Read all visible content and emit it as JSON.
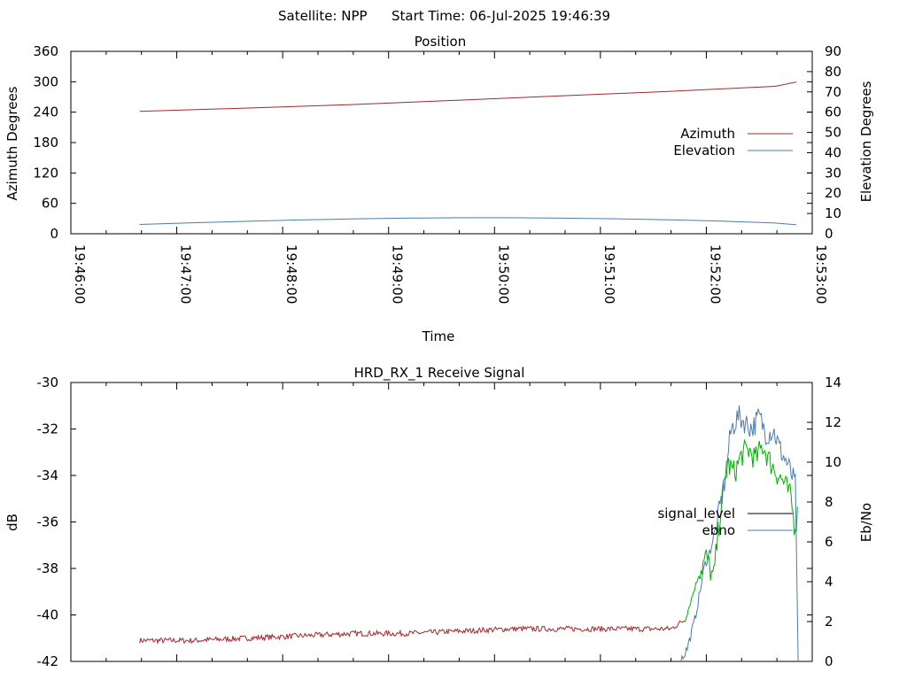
{
  "header": {
    "satellite_label": "Satellite: NPP",
    "start_time_label": "Start Time: 06-Jul-2025 19:46:39"
  },
  "colors": {
    "azimuth": "#a0282d",
    "elevation": "#4a7cb0",
    "signal_low": "#a0282d",
    "signal_high": "#00b000",
    "ebno": "#4a7cb0",
    "legend_signal_level": "#000000",
    "axis": "#000000"
  },
  "chart_data": [
    {
      "type": "line",
      "title": "Position",
      "xlabel": "Time",
      "ylabel": "Azimuth Degrees",
      "y2label": "Elevation Degrees",
      "xticks": [
        "19:46:00",
        "19:47:00",
        "19:48:00",
        "19:49:00",
        "19:50:00",
        "19:51:00",
        "19:52:00",
        "19:53:00"
      ],
      "xlim_seconds_of_day": [
        71160,
        71580
      ],
      "ylim": [
        0,
        360
      ],
      "yticks": [
        0,
        60,
        120,
        180,
        240,
        300,
        360
      ],
      "y2lim": [
        0,
        90
      ],
      "y2ticks": [
        0,
        10,
        20,
        30,
        40,
        50,
        60,
        70,
        80,
        90
      ],
      "legend_position": "right",
      "series": [
        {
          "name": "Azimuth",
          "axis": "y",
          "x": [
            71199,
            71259,
            71319,
            71379,
            71439,
            71499,
            71559,
            71571
          ],
          "y": [
            241.5,
            248.0,
            255.0,
            263.5,
            272.5,
            281.0,
            291.0,
            299.5
          ]
        },
        {
          "name": "Elevation",
          "axis": "y2",
          "x": [
            71199,
            71229,
            71259,
            71289,
            71319,
            71349,
            71379,
            71409,
            71439,
            71469,
            71499,
            71529,
            71559,
            71571
          ],
          "y": [
            4.6,
            5.4,
            6.1,
            6.8,
            7.3,
            7.7,
            7.9,
            7.9,
            7.7,
            7.4,
            6.9,
            6.2,
            5.3,
            4.4
          ]
        }
      ]
    },
    {
      "type": "line",
      "title": "HRD_RX_1 Receive Signal",
      "ylabel": "dB",
      "y2label": "Eb/No",
      "xlim_seconds_of_day": [
        71160,
        71580
      ],
      "ylim": [
        -42,
        -30
      ],
      "yticks": [
        -42,
        -40,
        -38,
        -36,
        -34,
        -32,
        -30
      ],
      "y2lim": [
        0,
        14
      ],
      "y2ticks": [
        0,
        2,
        4,
        6,
        8,
        10,
        12,
        14
      ],
      "legend_position": "right",
      "series": [
        {
          "name": "signal_level",
          "axis": "y",
          "x": [
            71199,
            71230,
            71260,
            71290,
            71320,
            71350,
            71380,
            71410,
            71440,
            71470,
            71500,
            71508,
            71512,
            71516,
            71520,
            71524,
            71528,
            71532,
            71536,
            71540,
            71544,
            71548,
            71552,
            71556,
            71560,
            71564,
            71568,
            71570,
            71572
          ],
          "y": [
            -41.1,
            -41.1,
            -41.0,
            -40.9,
            -40.8,
            -40.8,
            -40.7,
            -40.6,
            -40.6,
            -40.6,
            -40.6,
            -40.2,
            -39.2,
            -38.2,
            -37.5,
            -38.5,
            -35.5,
            -33.5,
            -33.9,
            -33.1,
            -32.9,
            -33.3,
            -32.7,
            -33.4,
            -33.9,
            -34.3,
            -35.0,
            -36.2,
            -35.6
          ]
        },
        {
          "name": "ebno",
          "axis": "y2",
          "x": [
            71505,
            71509,
            71513,
            71516,
            71519,
            71522,
            71526,
            71530,
            71534,
            71538,
            71542,
            71546,
            71550,
            71554,
            71558,
            71562,
            71566,
            71569,
            71571,
            71572
          ],
          "y": [
            0.0,
            0.6,
            1.9,
            3.3,
            4.8,
            5.5,
            6.9,
            8.8,
            11.6,
            12.3,
            12.0,
            11.7,
            12.3,
            11.4,
            11.6,
            10.6,
            9.9,
            9.2,
            8.7,
            0.0
          ]
        }
      ]
    }
  ]
}
